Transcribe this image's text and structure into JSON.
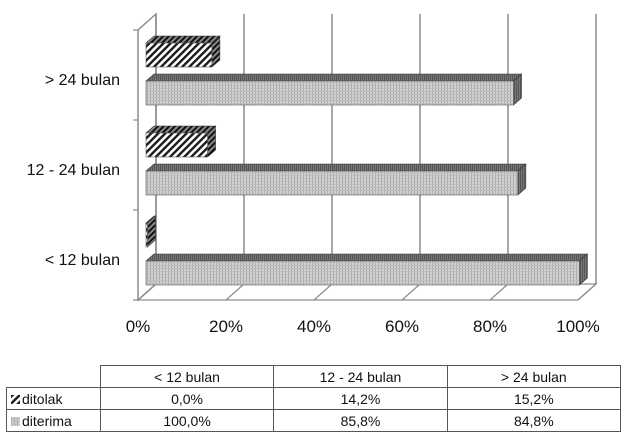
{
  "chart_data": {
    "type": "bar",
    "orientation": "horizontal",
    "stacked": false,
    "categories": [
      "< 12 bulan",
      "12 - 24 bulan",
      "> 24 bulan"
    ],
    "series": [
      {
        "name": "ditolak",
        "values": [
          0.0,
          14.2,
          15.2
        ],
        "pattern": "diagonal-hatch"
      },
      {
        "name": "diterima",
        "values": [
          100.0,
          85.8,
          84.8
        ],
        "pattern": "dotted-grey"
      }
    ],
    "x_ticks": [
      "0%",
      "20%",
      "40%",
      "60%",
      "80%",
      "100%"
    ],
    "xlim": [
      0,
      100
    ],
    "grid": true,
    "three_d": true,
    "title": "",
    "xlabel": "",
    "ylabel": ""
  },
  "table": {
    "columns": [
      "< 12 bulan",
      "12 - 24 bulan",
      "> 24 bulan"
    ],
    "rows": [
      {
        "label": "ditolak",
        "values": [
          "0,0%",
          "14,2%",
          "15,2%"
        ]
      },
      {
        "label": "diterima",
        "values": [
          "100,0%",
          "85,8%",
          "84,8%"
        ]
      }
    ]
  }
}
